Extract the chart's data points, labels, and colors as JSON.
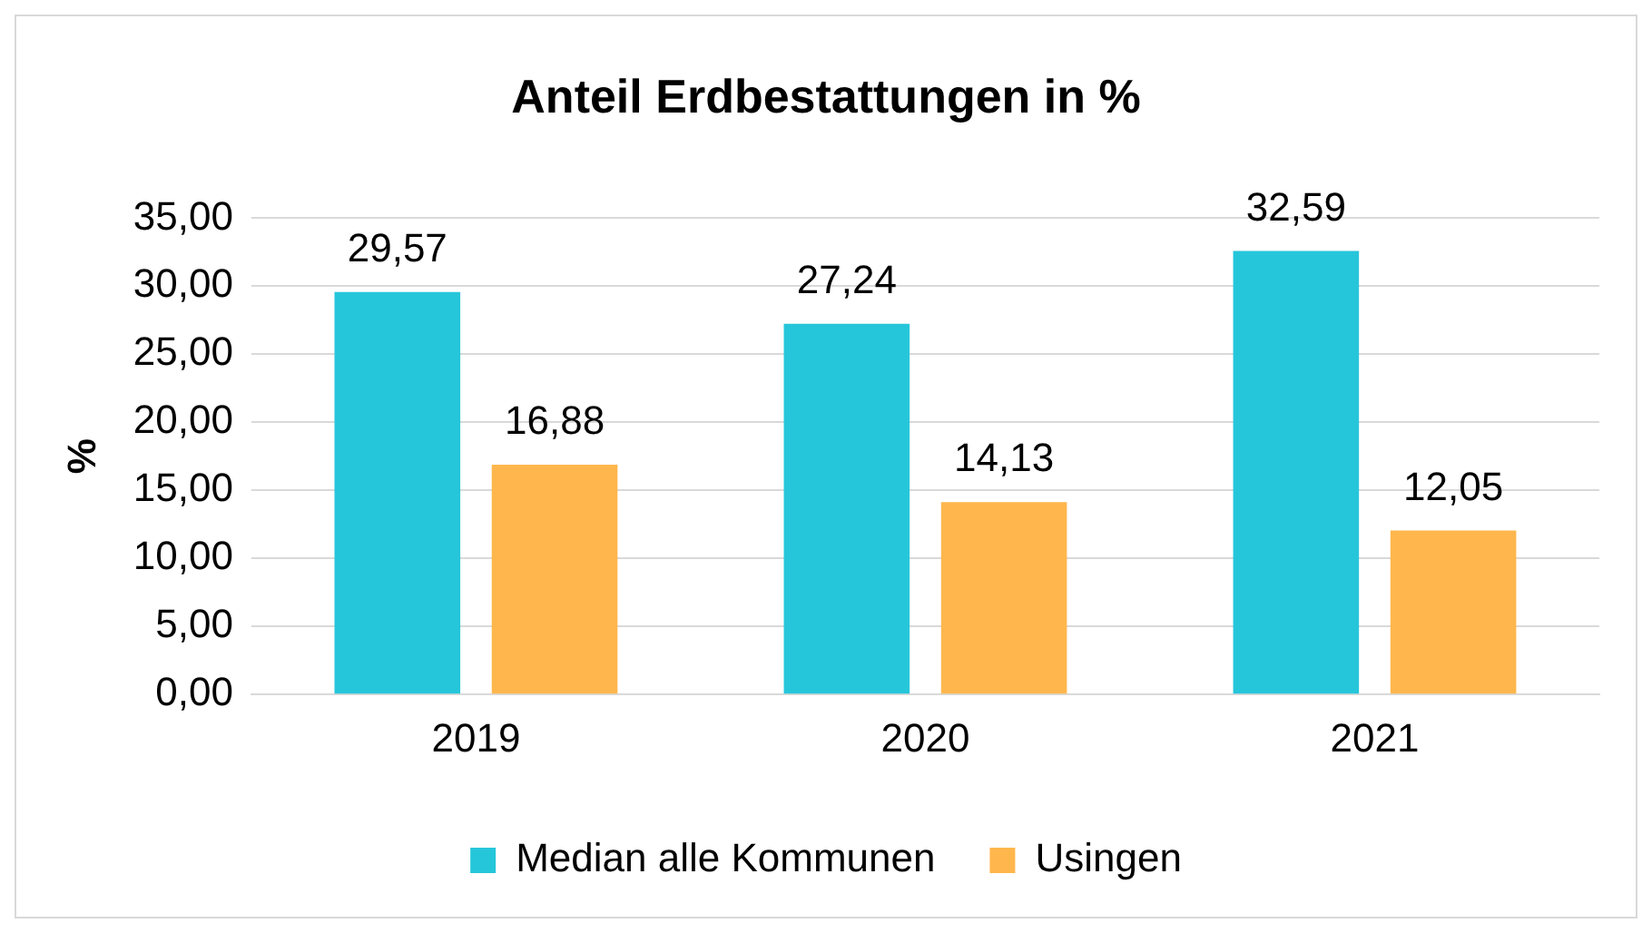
{
  "chart_data": {
    "type": "bar",
    "title": "Anteil Erdbestattungen in %",
    "ylabel": "%",
    "categories": [
      "2019",
      "2020",
      "2021"
    ],
    "series": [
      {
        "name": "Median alle Kommunen",
        "color": "#26c6da",
        "values": [
          29.57,
          27.24,
          32.59
        ],
        "value_labels": [
          "29,57",
          "27,24",
          "32,59"
        ]
      },
      {
        "name": "Usingen",
        "color": "#ffb74d",
        "values": [
          16.88,
          14.13,
          12.05
        ],
        "value_labels": [
          "16,88",
          "14,13",
          "12,05"
        ]
      }
    ],
    "ylim": [
      0,
      35
    ],
    "yticks": [
      {
        "value": 0,
        "label": "0,00"
      },
      {
        "value": 5,
        "label": "5,00"
      },
      {
        "value": 10,
        "label": "10,00"
      },
      {
        "value": 15,
        "label": "15,00"
      },
      {
        "value": 20,
        "label": "20,00"
      },
      {
        "value": 25,
        "label": "25,00"
      },
      {
        "value": 30,
        "label": "30,00"
      },
      {
        "value": 35,
        "label": "35,00"
      }
    ],
    "grid": "y",
    "legend": "bottom"
  }
}
